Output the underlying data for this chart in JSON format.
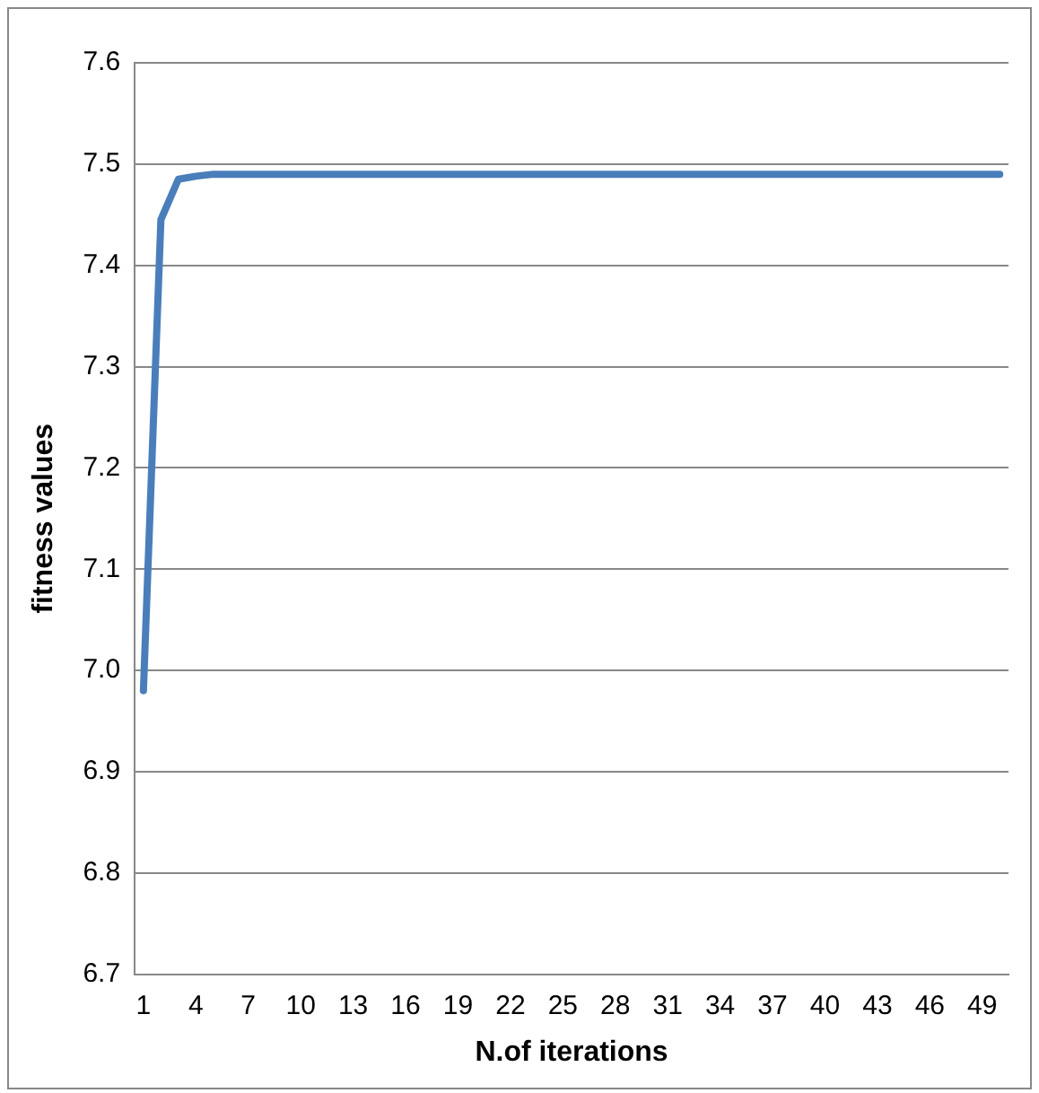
{
  "chart_data": {
    "type": "line",
    "xlabel": "N.of iterations",
    "ylabel": "fitness values",
    "categories": [
      "1",
      null,
      null,
      "4",
      null,
      null,
      "7",
      null,
      null,
      "10",
      null,
      null,
      "13",
      null,
      null,
      "16",
      null,
      null,
      "19",
      null,
      null,
      "22",
      null,
      null,
      "25",
      null,
      null,
      "28",
      null,
      null,
      "31",
      null,
      null,
      "34",
      null,
      null,
      "37",
      null,
      null,
      "40",
      null,
      null,
      "43",
      null,
      null,
      "46",
      null,
      null,
      "49",
      null
    ],
    "series": [
      {
        "color": "#4a7ebb",
        "values": [
          6.98,
          7.445,
          7.485,
          7.488,
          7.49,
          7.49,
          7.49,
          7.49,
          7.49,
          7.49,
          7.49,
          7.49,
          7.49,
          7.49,
          7.49,
          7.49,
          7.49,
          7.49,
          7.49,
          7.49,
          7.49,
          7.49,
          7.49,
          7.49,
          7.49,
          7.49,
          7.49,
          7.49,
          7.49,
          7.49,
          7.49,
          7.49,
          7.49,
          7.49,
          7.49,
          7.49,
          7.49,
          7.49,
          7.49,
          7.49,
          7.49,
          7.49,
          7.49,
          7.49,
          7.49,
          7.49,
          7.49,
          7.49,
          7.49,
          7.49
        ]
      }
    ],
    "ylim": [
      6.7,
      7.6
    ],
    "yticks": [
      6.7,
      6.8,
      6.9,
      {
        "value": 7,
        "label": "7.0"
      },
      7.1,
      7.2,
      7.3,
      7.4,
      7.5,
      7.6
    ],
    "grid": "y",
    "legend": false,
    "marker": "none",
    "line_style": "solid"
  }
}
